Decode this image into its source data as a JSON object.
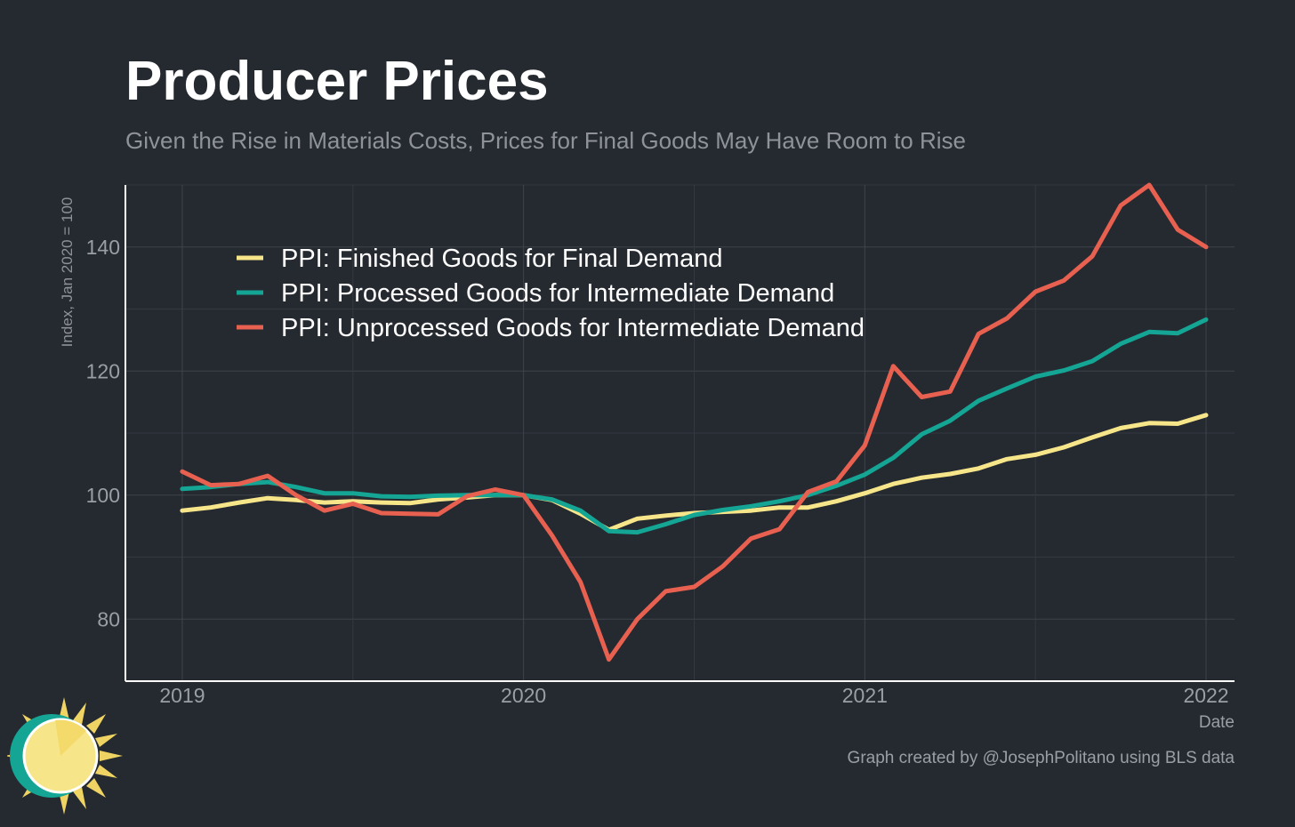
{
  "title": "Producer Prices",
  "subtitle": "Given the Rise in Materials Costs, Prices for Final Goods May Have Room to Rise",
  "credit": "Graph created by @JosephPolitano using BLS data",
  "logo_icon": "sun-icon",
  "chart_data": {
    "type": "line",
    "ylabel": "Index, Jan 2020 = 100",
    "xlabel": "Date",
    "xlim": [
      "2018-11",
      "2022-02"
    ],
    "ylim": [
      70,
      150
    ],
    "yticks": [
      80,
      100,
      120,
      140
    ],
    "xticks": [
      "2019",
      "2020",
      "2021",
      "2022"
    ],
    "grid": true,
    "legend_position": "top-left",
    "x": [
      "2019-01",
      "2019-02",
      "2019-03",
      "2019-04",
      "2019-05",
      "2019-06",
      "2019-07",
      "2019-08",
      "2019-09",
      "2019-10",
      "2019-11",
      "2019-12",
      "2020-01",
      "2020-02",
      "2020-03",
      "2020-04",
      "2020-05",
      "2020-06",
      "2020-07",
      "2020-08",
      "2020-09",
      "2020-10",
      "2020-11",
      "2020-12",
      "2021-01",
      "2021-02",
      "2021-03",
      "2021-04",
      "2021-05",
      "2021-06",
      "2021-07",
      "2021-08",
      "2021-09",
      "2021-10",
      "2021-11",
      "2021-12",
      "2022-01"
    ],
    "series": [
      {
        "name": "PPI: Finished Goods for Final Demand",
        "color": "#f7e58a",
        "values": [
          97.5,
          98.0,
          98.8,
          99.5,
          99.2,
          98.8,
          99.0,
          98.8,
          98.7,
          99.3,
          99.6,
          100.0,
          100.0,
          99.2,
          97.0,
          94.4,
          96.2,
          96.7,
          97.1,
          97.3,
          97.5,
          98.0,
          98.0,
          99.0,
          100.3,
          101.8,
          102.8,
          103.4,
          104.3,
          105.8,
          106.5,
          107.7,
          109.3,
          110.8,
          111.6,
          111.5,
          112.9
        ]
      },
      {
        "name": "PPI: Processed Goods for Intermediate Demand",
        "color": "#14a594",
        "values": [
          101.0,
          101.3,
          101.8,
          102.1,
          101.3,
          100.3,
          100.3,
          99.8,
          99.7,
          99.9,
          100.0,
          100.0,
          100.0,
          99.3,
          97.5,
          94.2,
          94.0,
          95.3,
          96.8,
          97.6,
          98.2,
          99.0,
          100.0,
          101.5,
          103.3,
          106.0,
          109.8,
          112.0,
          115.2,
          117.2,
          119.1,
          120.1,
          121.6,
          124.4,
          126.3,
          126.1,
          128.3
        ]
      },
      {
        "name": "PPI: Unprocessed Goods for Intermediate Demand",
        "color": "#e8604f",
        "values": [
          103.8,
          101.6,
          101.8,
          103.1,
          100.0,
          97.5,
          98.6,
          97.1,
          97.0,
          96.9,
          99.8,
          100.9,
          100.0,
          93.5,
          86.0,
          73.5,
          80.0,
          84.5,
          85.2,
          88.5,
          93.0,
          94.5,
          100.5,
          102.2,
          108.0,
          120.8,
          115.8,
          116.7,
          126.0,
          128.5,
          132.8,
          134.6,
          138.5,
          146.7,
          150.0,
          142.8,
          140.0
        ]
      }
    ]
  }
}
